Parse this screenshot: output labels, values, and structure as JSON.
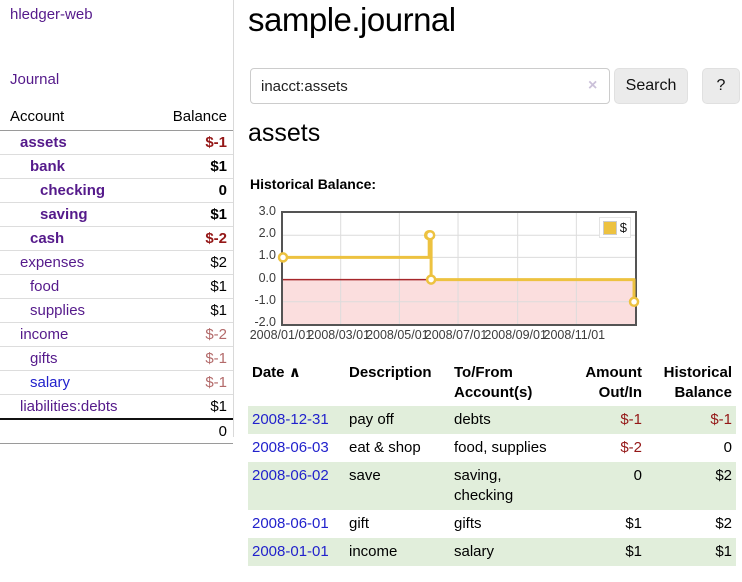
{
  "app": {
    "brand": "hledger-web"
  },
  "colors": {
    "link_purple": "#551a8b",
    "link_blue": "#2222cc",
    "negative_strong": "#941717",
    "negative_light": "#b36a6a",
    "row_highlight_green": "#e1eedb",
    "series_gold": "#edc240"
  },
  "sidebar": {
    "journal_link": "Journal",
    "accounts_table": {
      "headers": {
        "account": "Account",
        "balance": "Balance"
      },
      "rows": [
        {
          "account": "assets",
          "balance": "$-1",
          "depth": 1,
          "selected": true,
          "balance_style": "neg-strong"
        },
        {
          "account": "bank",
          "balance": "$1",
          "depth": 2,
          "selected": true,
          "balance_style": "pos"
        },
        {
          "account": "checking",
          "balance": "0",
          "depth": 3,
          "selected": true,
          "balance_style": "pos"
        },
        {
          "account": "saving",
          "balance": "$1",
          "depth": 3,
          "selected": true,
          "balance_style": "pos"
        },
        {
          "account": "cash",
          "balance": "$-2",
          "depth": 2,
          "selected": true,
          "balance_style": "neg-strong"
        },
        {
          "account": "expenses",
          "balance": "$2",
          "depth": 1,
          "selected": false,
          "balance_style": "pos"
        },
        {
          "account": "food",
          "balance": "$1",
          "depth": 2,
          "selected": false,
          "balance_style": "pos"
        },
        {
          "account": "supplies",
          "balance": "$1",
          "depth": 2,
          "selected": false,
          "balance_style": "pos"
        },
        {
          "account": "income",
          "balance": "$-2",
          "depth": 1,
          "selected": false,
          "balance_style": "neg-light"
        },
        {
          "account": "gifts",
          "balance": "$-1",
          "depth": 2,
          "selected": false,
          "balance_style": "neg-light"
        },
        {
          "account": "salary",
          "balance": "$-1",
          "depth": 2,
          "selected": false,
          "balance_style": "neg-light",
          "link_style": "unvisited"
        },
        {
          "account": "liabilities:debts",
          "balance": "$1",
          "depth": 1,
          "selected": false,
          "balance_style": "pos"
        }
      ],
      "total": "0"
    }
  },
  "main": {
    "title": "sample.journal",
    "search": {
      "value": "inacct:assets",
      "clear_label": "×",
      "search_button": "Search",
      "help_button": "?"
    },
    "account_heading": "assets",
    "chart_heading": "Historical Balance:"
  },
  "chart_data": {
    "type": "line",
    "title": "Historical Balance",
    "x_range": [
      "2008-01-01",
      "2009-01-01"
    ],
    "ylim": [
      -2,
      3
    ],
    "y_ticks": [
      {
        "v": 3,
        "label": "3.0"
      },
      {
        "v": 2,
        "label": "2.0"
      },
      {
        "v": 1,
        "label": "1.0"
      },
      {
        "v": 0,
        "label": "0.0"
      },
      {
        "v": -1,
        "label": "-1.0"
      },
      {
        "v": -2,
        "label": "-2.0"
      }
    ],
    "x_ticks": [
      {
        "date": "2008-01-01",
        "label": "2008/01/01"
      },
      {
        "date": "2008-03-01",
        "label": "2008/03/01"
      },
      {
        "date": "2008-05-01",
        "label": "2008/05/01"
      },
      {
        "date": "2008-07-01",
        "label": "2008/07/01"
      },
      {
        "date": "2008-09-01",
        "label": "2008/09/01"
      },
      {
        "date": "2008-11-01",
        "label": "2008/11/01"
      }
    ],
    "series": [
      {
        "name": "$",
        "color": "#edc240",
        "step": true,
        "points": [
          [
            "2008-01-01",
            1
          ],
          [
            "2008-06-01",
            2
          ],
          [
            "2008-06-02",
            2
          ],
          [
            "2008-06-03",
            0
          ],
          [
            "2008-12-31",
            -1
          ]
        ]
      }
    ],
    "legend": {
      "position": "top-right",
      "label": "$"
    },
    "grid": true,
    "grid_color": "#dcdcdc",
    "zero_line_color": "#a6262a",
    "negative_region_color": "#fbdede",
    "plot_border_color": "#545454"
  },
  "register": {
    "headers": {
      "date": "Date",
      "sort_indicator": "∧",
      "description": "Description",
      "accounts": "To/From Account(s)",
      "amount": "Amount Out/In",
      "balance": "Historical Balance"
    },
    "rows": [
      {
        "date": "2008-12-31",
        "description": "pay off",
        "accounts": "debts",
        "amount": "$-1",
        "amount_negative": true,
        "balance": "$-1",
        "balance_negative": true
      },
      {
        "date": "2008-06-03",
        "description": "eat & shop",
        "accounts": "food, supplies",
        "amount": "$-2",
        "amount_negative": true,
        "balance": "0",
        "balance_negative": false
      },
      {
        "date": "2008-06-02",
        "description": "save",
        "accounts": "saving, checking",
        "amount": "0",
        "amount_negative": false,
        "balance": "$2",
        "balance_negative": false
      },
      {
        "date": "2008-06-01",
        "description": "gift",
        "accounts": "gifts",
        "amount": "$1",
        "amount_negative": false,
        "balance": "$2",
        "balance_negative": false
      },
      {
        "date": "2008-01-01",
        "description": "income",
        "accounts": "salary",
        "amount": "$1",
        "amount_negative": false,
        "balance": "$1",
        "balance_negative": false
      }
    ]
  }
}
